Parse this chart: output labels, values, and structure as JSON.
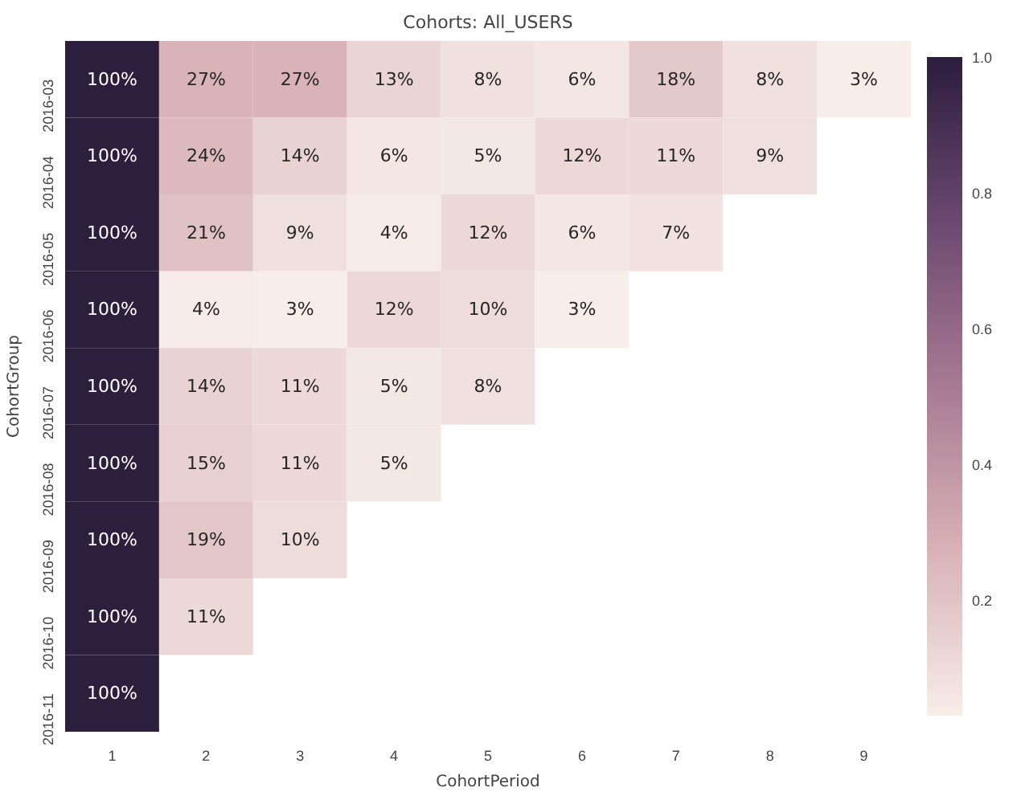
{
  "chart_data": {
    "type": "heatmap",
    "title": "Cohorts: All_USERS",
    "xlabel": "CohortPeriod",
    "ylabel": "CohortGroup",
    "categories": [
      "1",
      "2",
      "3",
      "4",
      "5",
      "6",
      "7",
      "8",
      "9"
    ],
    "y_categories": [
      "2016-03",
      "2016-04",
      "2016-05",
      "2016-06",
      "2016-07",
      "2016-08",
      "2016-09",
      "2016-10",
      "2016-11"
    ],
    "cells": [
      [
        1,
        0.27,
        0.27,
        0.13,
        0.08,
        0.06,
        0.18,
        0.08,
        0.03
      ],
      [
        1,
        0.24,
        0.14,
        0.06,
        0.05,
        0.12,
        0.11,
        0.09,
        null
      ],
      [
        1,
        0.21,
        0.09,
        0.04,
        0.12,
        0.06,
        0.07,
        null,
        null
      ],
      [
        1,
        0.04,
        0.03,
        0.12,
        0.1,
        0.03,
        null,
        null,
        null
      ],
      [
        1,
        0.14,
        0.11,
        0.05,
        0.08,
        null,
        null,
        null,
        null
      ],
      [
        1,
        0.15,
        0.11,
        0.05,
        null,
        null,
        null,
        null,
        null
      ],
      [
        1,
        0.19,
        0.1,
        null,
        null,
        null,
        null,
        null,
        null
      ],
      [
        1,
        0.11,
        null,
        null,
        null,
        null,
        null,
        null,
        null
      ],
      [
        1,
        null,
        null,
        null,
        null,
        null,
        null,
        null,
        null
      ]
    ],
    "cell_labels": [
      [
        "100%",
        "27%",
        "27%",
        "13%",
        "8%",
        "6%",
        "18%",
        "8%",
        "3%"
      ],
      [
        "100%",
        "24%",
        "14%",
        "6%",
        "5%",
        "12%",
        "11%",
        "9%",
        null
      ],
      [
        "100%",
        "21%",
        "9%",
        "4%",
        "12%",
        "6%",
        "7%",
        null,
        null
      ],
      [
        "100%",
        "4%",
        "3%",
        "12%",
        "10%",
        "3%",
        null,
        null,
        null
      ],
      [
        "100%",
        "14%",
        "11%",
        "5%",
        "8%",
        null,
        null,
        null,
        null
      ],
      [
        "100%",
        "15%",
        "11%",
        "5%",
        null,
        null,
        null,
        null,
        null
      ],
      [
        "100%",
        "19%",
        "10%",
        null,
        null,
        null,
        null,
        null,
        null
      ],
      [
        "100%",
        "11%",
        null,
        null,
        null,
        null,
        null,
        null,
        null
      ],
      [
        "100%",
        null,
        null,
        null,
        null,
        null,
        null,
        null,
        null
      ]
    ],
    "clim": [
      0.03,
      1.0
    ],
    "cticks": [
      0.2,
      0.4,
      0.6,
      0.8,
      {
        "value": 1.0,
        "label": "1.0"
      }
    ]
  }
}
